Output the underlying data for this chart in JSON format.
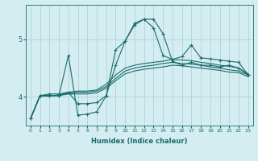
{
  "xlabel": "Humidex (Indice chaleur)",
  "bg_color": "#d4edf0",
  "grid_color": "#aacdd4",
  "line_color": "#1a6b6b",
  "xlim": [
    -0.5,
    23.5
  ],
  "ylim": [
    3.5,
    5.6
  ],
  "yticks": [
    4,
    5
  ],
  "xticks": [
    0,
    1,
    2,
    3,
    4,
    5,
    6,
    7,
    8,
    9,
    10,
    11,
    12,
    13,
    14,
    15,
    16,
    17,
    18,
    19,
    20,
    21,
    22,
    23
  ],
  "lines": [
    {
      "x": [
        0,
        1,
        2,
        3,
        4,
        5,
        6,
        7,
        8,
        9,
        10,
        11,
        12,
        13,
        14,
        15,
        16,
        17,
        18,
        19,
        20,
        21,
        22,
        23
      ],
      "y": [
        3.62,
        4.02,
        4.02,
        4.02,
        4.72,
        3.68,
        3.7,
        3.74,
        4.02,
        4.82,
        4.97,
        5.28,
        5.35,
        5.2,
        4.72,
        4.65,
        4.7,
        4.9,
        4.68,
        4.66,
        4.64,
        4.62,
        4.6,
        4.38
      ],
      "marker": "+"
    },
    {
      "x": [
        0,
        1,
        2,
        3,
        4,
        5,
        6,
        7,
        8,
        9,
        10,
        11,
        12,
        13,
        14,
        15,
        16,
        17,
        18,
        19,
        20,
        21,
        22,
        23
      ],
      "y": [
        3.62,
        4.02,
        4.02,
        4.03,
        4.08,
        4.1,
        4.1,
        4.12,
        4.22,
        4.38,
        4.5,
        4.55,
        4.58,
        4.6,
        4.62,
        4.65,
        4.64,
        4.63,
        4.6,
        4.58,
        4.55,
        4.53,
        4.5,
        4.4
      ],
      "marker": null
    },
    {
      "x": [
        0,
        1,
        2,
        3,
        4,
        5,
        6,
        7,
        8,
        9,
        10,
        11,
        12,
        13,
        14,
        15,
        16,
        17,
        18,
        19,
        20,
        21,
        22,
        23
      ],
      "y": [
        3.62,
        4.02,
        4.02,
        4.03,
        4.06,
        4.08,
        4.08,
        4.1,
        4.18,
        4.32,
        4.45,
        4.5,
        4.53,
        4.55,
        4.58,
        4.6,
        4.58,
        4.57,
        4.55,
        4.52,
        4.5,
        4.47,
        4.45,
        4.38
      ],
      "marker": null
    },
    {
      "x": [
        0,
        1,
        2,
        3,
        4,
        5,
        6,
        7,
        8,
        9,
        10,
        11,
        12,
        13,
        14,
        15,
        16,
        17,
        18,
        19,
        20,
        21,
        22,
        23
      ],
      "y": [
        3.62,
        4.02,
        4.02,
        4.02,
        4.05,
        4.05,
        4.05,
        4.07,
        4.15,
        4.28,
        4.4,
        4.45,
        4.48,
        4.5,
        4.52,
        4.55,
        4.54,
        4.52,
        4.5,
        4.48,
        4.46,
        4.43,
        4.42,
        4.35
      ],
      "marker": null
    },
    {
      "x": [
        0,
        1,
        2,
        3,
        4,
        5,
        6,
        7,
        8,
        9,
        10,
        11,
        12,
        13,
        14,
        15,
        16,
        17,
        18,
        19,
        20,
        21,
        22,
        23
      ],
      "y": [
        3.62,
        4.02,
        4.05,
        4.05,
        4.08,
        3.88,
        3.88,
        3.9,
        4.02,
        4.55,
        4.97,
        5.25,
        5.35,
        5.35,
        5.1,
        4.62,
        4.55,
        4.6,
        4.55,
        4.55,
        4.52,
        4.55,
        4.5,
        4.38
      ],
      "marker": "+"
    }
  ]
}
